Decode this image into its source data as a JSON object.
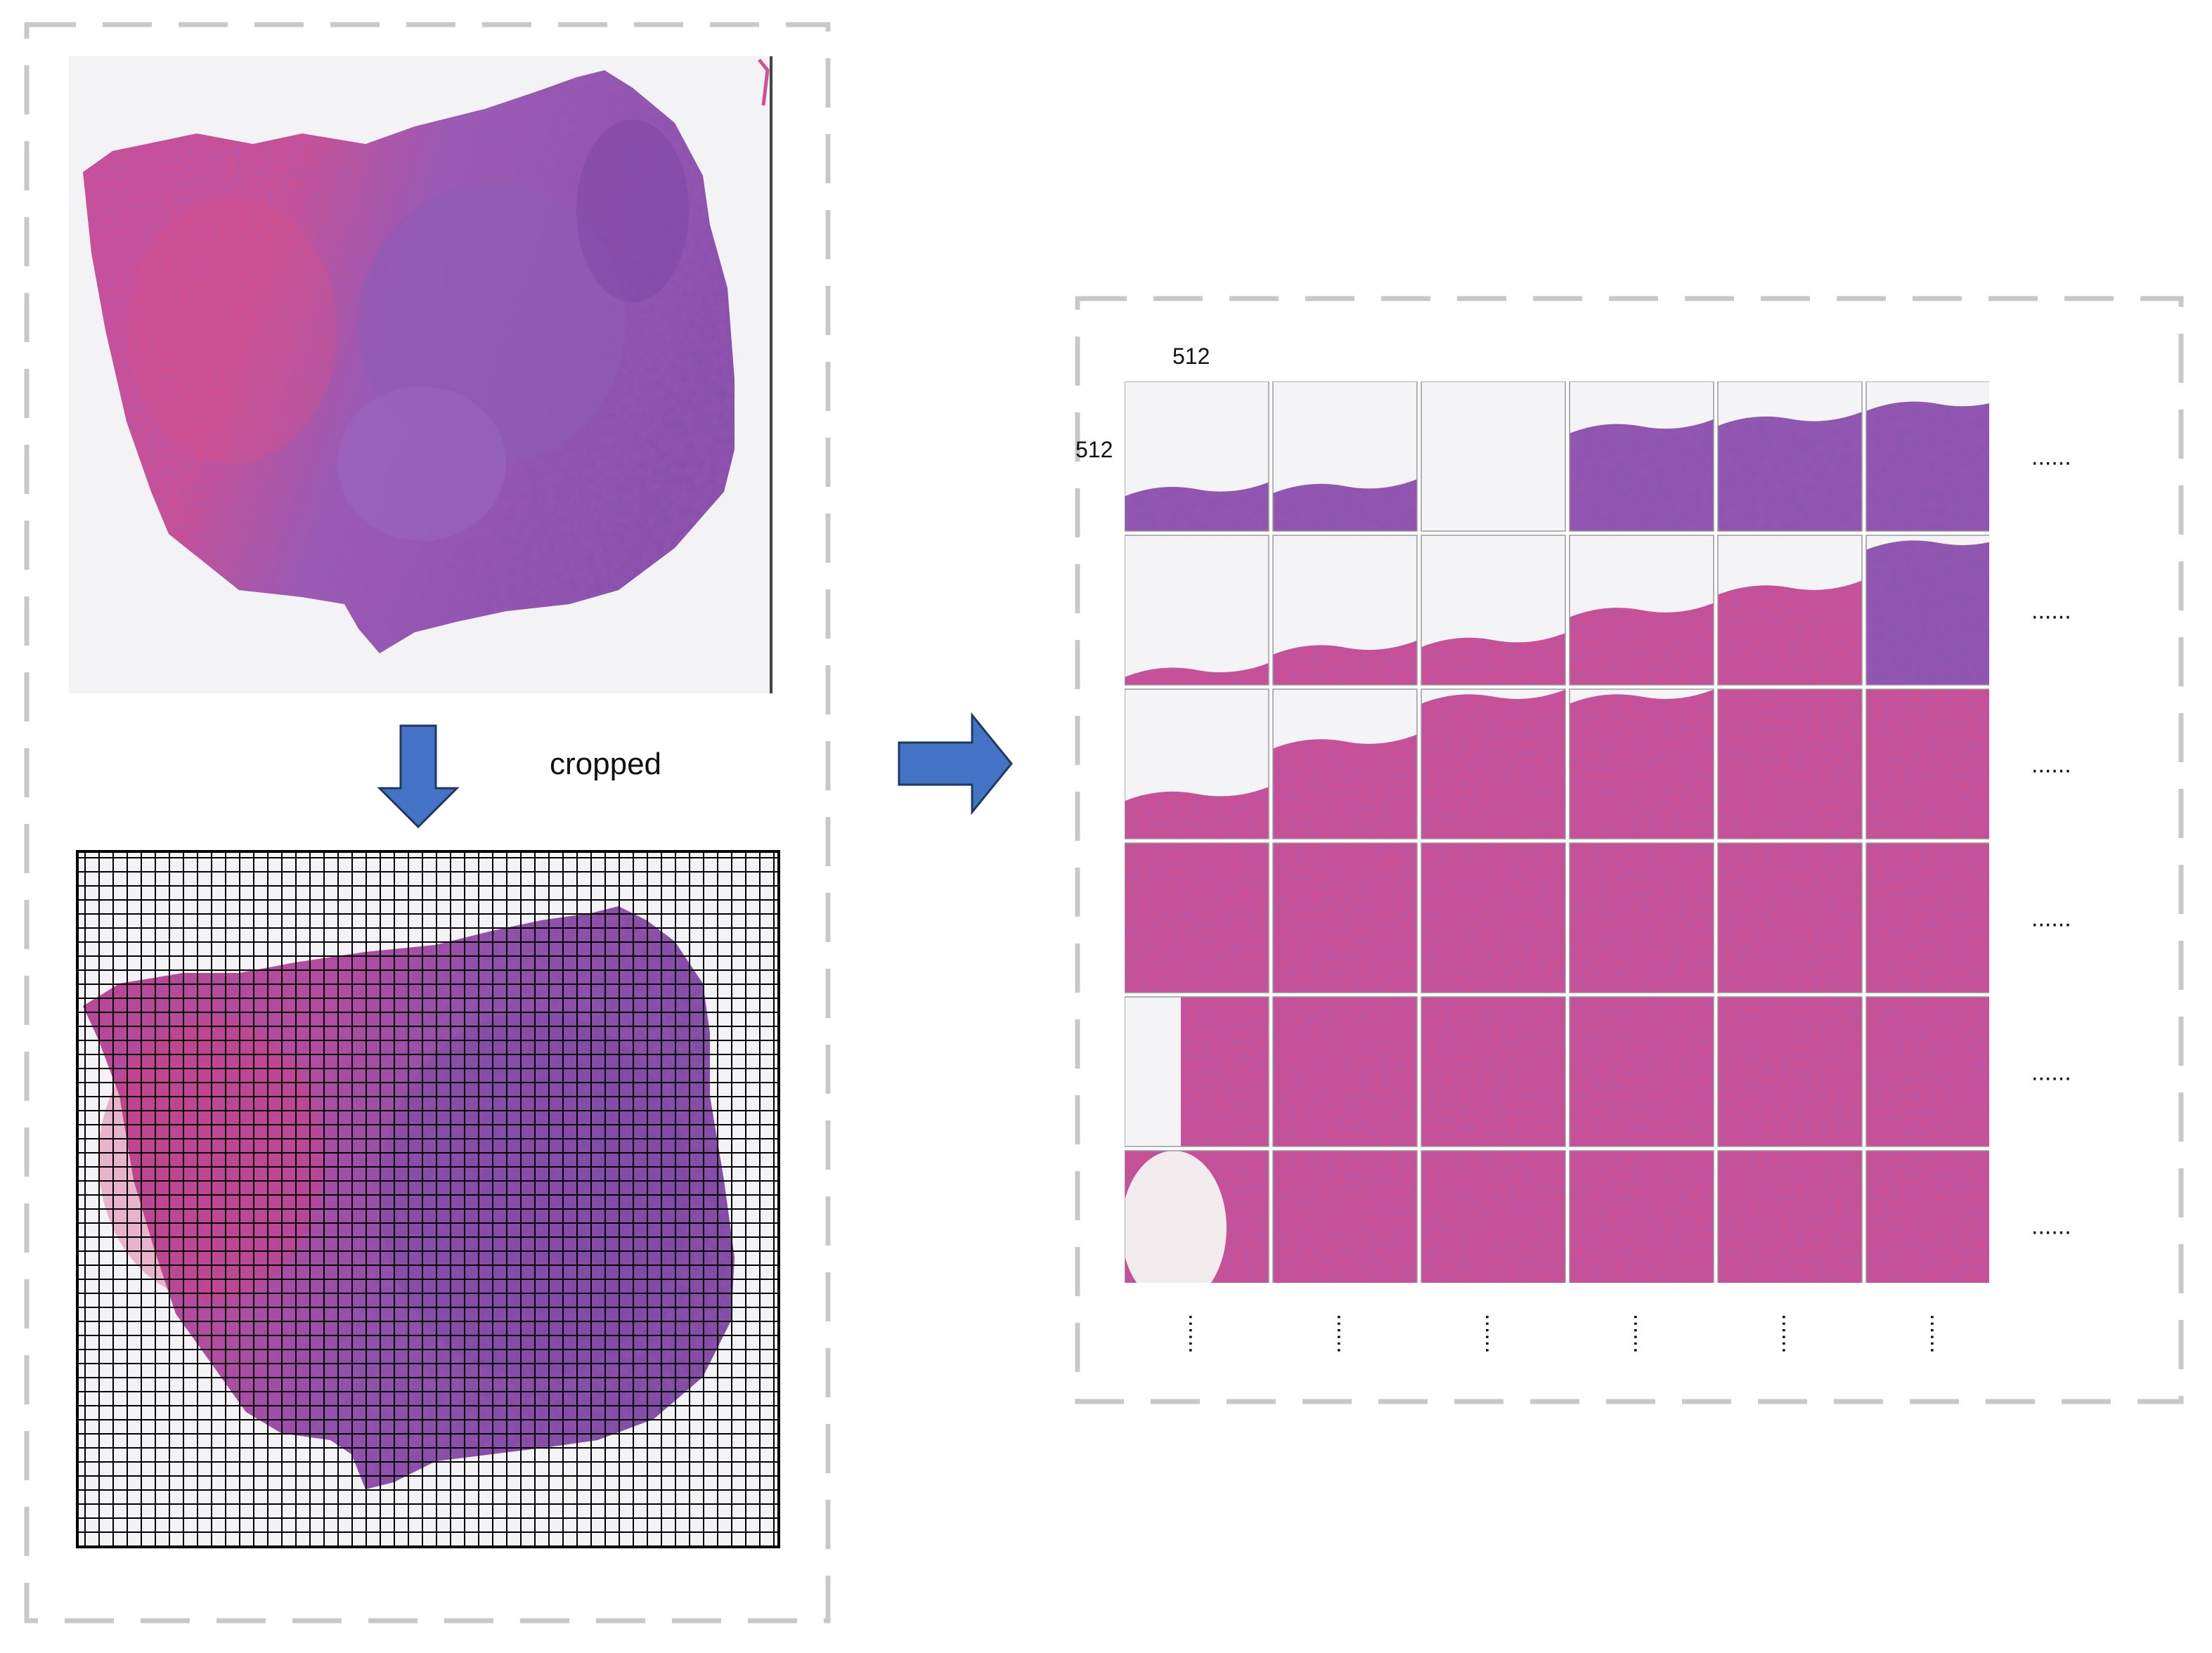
{
  "labels": {
    "crop_step": "cropped",
    "tile_width": "512",
    "tile_height": "512",
    "row_more": "......",
    "col_more": "......"
  },
  "tile_grid": {
    "rows": 6,
    "cols": 6
  },
  "colors": {
    "frame_dash": "#c8c8c8",
    "arrow_fill": "#4472c4",
    "arrow_stroke": "#1f3864",
    "grid_line": "#000000",
    "stroma_pink": "#d0508f",
    "tumor_purple": "#8a56b0",
    "background_white": "#f4f4f6"
  }
}
